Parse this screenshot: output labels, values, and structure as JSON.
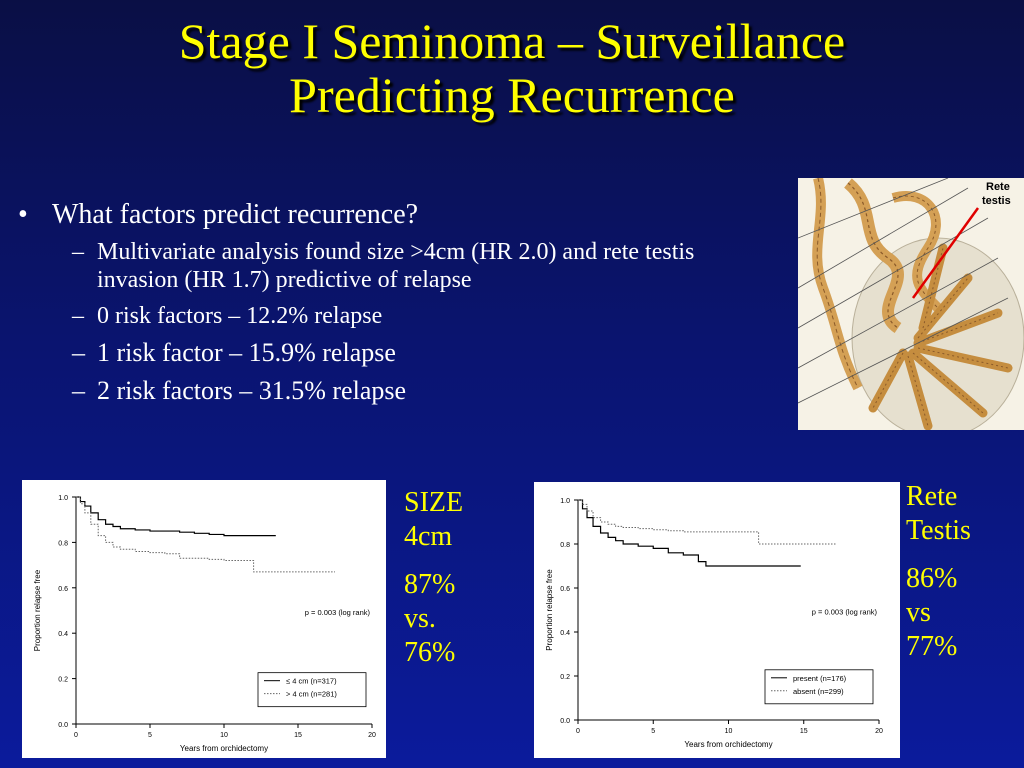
{
  "title": {
    "line1": "Stage I Seminoma – Surveillance",
    "line2": "Predicting Recurrence"
  },
  "bullets": {
    "main": "What factors predict recurrence?",
    "subs": [
      "Multivariate analysis found size >4cm (HR 2.0) and rete testis invasion (HR 1.7) predictive of relapse",
      "0 risk factors – 12.2% relapse",
      "1 risk factor – 15.9% relapse",
      "2 risk factors – 31.5% relapse"
    ]
  },
  "anatomy": {
    "label_line1": "Rete",
    "label_line2": "testis"
  },
  "size_stats": {
    "l1": "SIZE",
    "l2": "4cm",
    "l3": "87%",
    "l4": "vs.",
    "l5": "76%"
  },
  "rete_stats": {
    "l1": "Rete",
    "l2": "Testis",
    "l3": "86%",
    "l4": "vs",
    "l5": "77%"
  },
  "chart_data": [
    {
      "type": "line",
      "xlabel": "Years from orchidectomy",
      "ylabel": "Proportion relapse free",
      "xlim": [
        0,
        20
      ],
      "ylim": [
        0,
        1
      ],
      "xticks": [
        "0",
        "5",
        "10",
        "15",
        "20"
      ],
      "yticks": [
        "0.0",
        "0.2",
        "0.4",
        "0.6",
        "0.8",
        "1.0"
      ],
      "annotation": "p = 0.003 (log rank)",
      "legend_position": "bottom-right",
      "series": [
        {
          "name": "≤ 4 cm (n=317)",
          "style": "solid",
          "x": [
            0,
            0.3,
            0.6,
            1,
            1.5,
            2,
            2.5,
            3,
            4,
            5,
            6,
            7,
            8,
            9,
            10,
            11,
            12,
            13,
            13.5
          ],
          "y": [
            1.0,
            0.98,
            0.96,
            0.93,
            0.9,
            0.88,
            0.87,
            0.86,
            0.855,
            0.85,
            0.85,
            0.845,
            0.84,
            0.835,
            0.83,
            0.83,
            0.83,
            0.83,
            0.83
          ]
        },
        {
          "name": "> 4 cm (n=281)",
          "style": "dotted",
          "x": [
            0,
            0.3,
            0.6,
            1,
            1.5,
            2,
            2.5,
            3,
            4,
            5,
            6,
            7,
            8,
            9,
            10,
            11,
            11.9,
            12,
            15,
            17.5
          ],
          "y": [
            1.0,
            0.97,
            0.93,
            0.88,
            0.83,
            0.8,
            0.78,
            0.77,
            0.76,
            0.755,
            0.75,
            0.73,
            0.73,
            0.725,
            0.72,
            0.72,
            0.72,
            0.67,
            0.67,
            0.67
          ]
        }
      ]
    },
    {
      "type": "line",
      "xlabel": "Years from orchidectomy",
      "ylabel": "Proportion relapse free",
      "xlim": [
        0,
        20
      ],
      "ylim": [
        0,
        1
      ],
      "xticks": [
        "0",
        "5",
        "10",
        "15",
        "20"
      ],
      "yticks": [
        "0.0",
        "0.2",
        "0.4",
        "0.6",
        "0.8",
        "1.0"
      ],
      "annotation": "p = 0.003 (log rank)",
      "legend_position": "bottom-right",
      "series": [
        {
          "name": "present (n=176)",
          "style": "solid",
          "x": [
            0,
            0.3,
            0.6,
            1,
            1.5,
            2,
            2.5,
            3,
            4,
            5,
            6,
            7,
            8,
            8.5,
            10,
            12,
            14,
            14.8
          ],
          "y": [
            1.0,
            0.96,
            0.92,
            0.88,
            0.85,
            0.83,
            0.815,
            0.8,
            0.79,
            0.78,
            0.76,
            0.75,
            0.72,
            0.7,
            0.7,
            0.7,
            0.7,
            0.7
          ]
        },
        {
          "name": "absent (n=299)",
          "style": "dotted",
          "x": [
            0,
            0.3,
            0.6,
            1,
            1.5,
            2,
            2.5,
            3,
            4,
            5,
            6,
            7,
            8,
            9,
            10,
            11.9,
            12,
            15,
            17.2
          ],
          "y": [
            1.0,
            0.98,
            0.95,
            0.92,
            0.9,
            0.89,
            0.88,
            0.875,
            0.87,
            0.865,
            0.86,
            0.855,
            0.855,
            0.855,
            0.855,
            0.855,
            0.8,
            0.8,
            0.8
          ]
        }
      ]
    }
  ]
}
